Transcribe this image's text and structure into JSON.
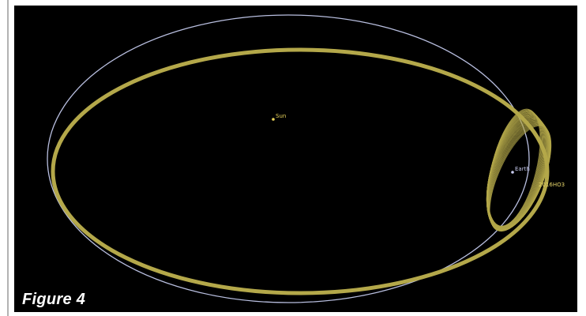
{
  "figure": {
    "caption": "Figure 4",
    "labels": {
      "sun": "Sun",
      "earth": "Earth",
      "asteroid": "2016HO3"
    }
  },
  "colors": {
    "background": "#000000",
    "earth_orbit": "#b9bfe0",
    "asteroid_orbit": "#b4a84a",
    "sun": "#e8d25a",
    "earth": "#c9ccf0",
    "asteroid_label": "#e7d66b",
    "caption": "#ffffff"
  },
  "icons": {
    "sun": "sun-icon",
    "earth": "earth-icon"
  }
}
